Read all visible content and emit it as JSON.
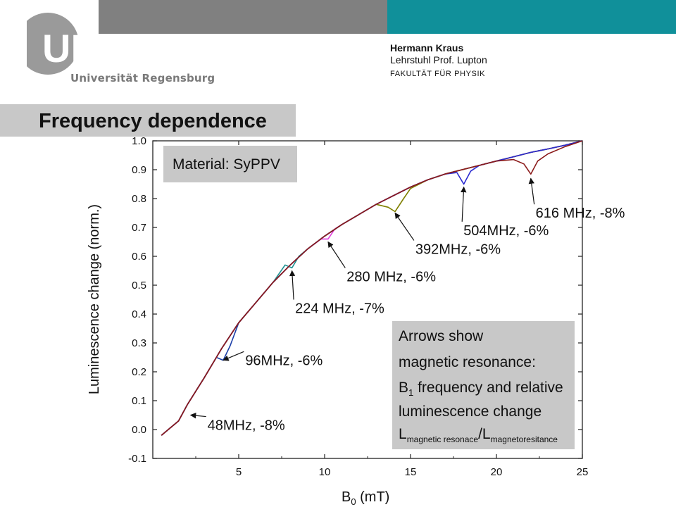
{
  "header": {
    "logo_letters": "UR",
    "university": "Universität Regensburg",
    "author": "Hermann Kraus",
    "chair": "Lehrstuhl Prof. Lupton",
    "faculty": "FAKULTÄT FÜR PHYSIK",
    "colors": {
      "gray_bar": "#808080",
      "teal_bar": "#10909a",
      "logo": "#8a8a8a"
    }
  },
  "slide": {
    "title": "Frequency dependence"
  },
  "chart_data": {
    "type": "line",
    "xlabel_main": "B",
    "xlabel_sub": "0",
    "xlabel_unit": " (mT)",
    "ylabel": "Luminescence change (norm.)",
    "xlim": [
      0,
      25
    ],
    "ylim": [
      -0.1,
      1.0
    ],
    "xticks": [
      "5",
      "10",
      "15",
      "20",
      "25"
    ],
    "yticks": [
      "-0.1",
      "0.0",
      "0.1",
      "0.2",
      "0.3",
      "0.4",
      "0.5",
      "0.6",
      "0.7",
      "0.8",
      "0.9",
      "1.0"
    ],
    "grid": false,
    "series": [
      {
        "color": "#c8102e",
        "x": [
          0.5,
          1.5,
          2,
          3,
          4,
          5,
          6,
          7,
          8,
          9,
          10,
          11,
          12,
          13,
          14,
          15,
          16,
          17,
          18,
          19,
          20,
          21,
          22,
          23,
          24,
          25
        ],
        "y": [
          -0.02,
          0.03,
          0.085,
          0.18,
          0.28,
          0.37,
          0.44,
          0.51,
          0.57,
          0.625,
          0.67,
          0.71,
          0.745,
          0.78,
          0.81,
          0.84,
          0.865,
          0.885,
          0.9,
          0.915,
          0.93,
          0.945,
          0.96,
          0.972,
          0.985,
          1.0
        ]
      },
      {
        "color": "#1c3fa8",
        "x": [
          0.5,
          1.5,
          2,
          3,
          3.7,
          4.1,
          4.5,
          5,
          6,
          7,
          8,
          9,
          10,
          11,
          12,
          13,
          14,
          15,
          16,
          17,
          18,
          19,
          20,
          21,
          22,
          23,
          24,
          25
        ],
        "y": [
          -0.02,
          0.03,
          0.085,
          0.18,
          0.25,
          0.24,
          0.29,
          0.37,
          0.44,
          0.51,
          0.57,
          0.625,
          0.67,
          0.71,
          0.745,
          0.78,
          0.81,
          0.84,
          0.865,
          0.885,
          0.9,
          0.915,
          0.93,
          0.945,
          0.96,
          0.972,
          0.985,
          1.0
        ]
      },
      {
        "color": "#1a9090",
        "x": [
          0.5,
          1.5,
          2,
          3,
          4,
          5,
          6,
          7,
          7.7,
          8.1,
          8.5,
          9,
          10,
          11,
          12,
          13,
          14,
          15,
          16,
          17,
          18,
          19,
          20,
          21,
          22,
          23,
          24,
          25
        ],
        "y": [
          -0.02,
          0.03,
          0.085,
          0.18,
          0.28,
          0.37,
          0.44,
          0.51,
          0.57,
          0.56,
          0.6,
          0.625,
          0.67,
          0.71,
          0.745,
          0.78,
          0.81,
          0.84,
          0.865,
          0.885,
          0.9,
          0.915,
          0.93,
          0.945,
          0.96,
          0.972,
          0.985,
          1.0
        ]
      },
      {
        "color": "#e040e0",
        "x": [
          0.5,
          1.5,
          2,
          3,
          4,
          5,
          6,
          7,
          8,
          9,
          9.8,
          10.2,
          10.6,
          11,
          12,
          13,
          14,
          15,
          16,
          17,
          18,
          19,
          20,
          21,
          22,
          23,
          24,
          25
        ],
        "y": [
          -0.02,
          0.03,
          0.085,
          0.18,
          0.28,
          0.37,
          0.44,
          0.51,
          0.57,
          0.625,
          0.66,
          0.66,
          0.695,
          0.71,
          0.745,
          0.78,
          0.81,
          0.84,
          0.865,
          0.885,
          0.9,
          0.915,
          0.93,
          0.945,
          0.96,
          0.972,
          0.985,
          1.0
        ]
      },
      {
        "color": "#808000",
        "x": [
          0.5,
          1.5,
          2,
          3,
          4,
          5,
          6,
          7,
          8,
          9,
          10,
          11,
          12,
          13,
          13.7,
          14.1,
          14.6,
          15,
          16,
          17,
          18,
          19,
          20,
          21,
          22,
          23,
          24,
          25
        ],
        "y": [
          -0.02,
          0.03,
          0.085,
          0.18,
          0.28,
          0.37,
          0.44,
          0.51,
          0.57,
          0.625,
          0.67,
          0.71,
          0.745,
          0.78,
          0.77,
          0.755,
          0.8,
          0.835,
          0.865,
          0.885,
          0.9,
          0.915,
          0.93,
          0.945,
          0.96,
          0.972,
          0.985,
          1.0
        ]
      },
      {
        "color": "#2a2ad0",
        "x": [
          0.5,
          1.5,
          2,
          3,
          4,
          5,
          6,
          7,
          8,
          9,
          10,
          11,
          12,
          13,
          14,
          15,
          16,
          17,
          17.7,
          18.1,
          18.5,
          19,
          20,
          21,
          22,
          23,
          24,
          25
        ],
        "y": [
          -0.02,
          0.03,
          0.085,
          0.18,
          0.28,
          0.37,
          0.44,
          0.51,
          0.57,
          0.625,
          0.67,
          0.71,
          0.745,
          0.78,
          0.81,
          0.84,
          0.865,
          0.885,
          0.89,
          0.85,
          0.895,
          0.915,
          0.93,
          0.945,
          0.96,
          0.972,
          0.985,
          1.0
        ]
      },
      {
        "color": "#8b1a1a",
        "x": [
          0.5,
          1.5,
          2,
          3,
          4,
          5,
          6,
          7,
          8,
          9,
          10,
          11,
          12,
          13,
          14,
          15,
          16,
          17,
          18,
          19,
          20,
          21,
          21.6,
          22,
          22.4,
          23,
          24,
          25
        ],
        "y": [
          -0.02,
          0.03,
          0.085,
          0.18,
          0.28,
          0.37,
          0.44,
          0.51,
          0.57,
          0.625,
          0.67,
          0.71,
          0.745,
          0.78,
          0.81,
          0.84,
          0.865,
          0.885,
          0.9,
          0.915,
          0.93,
          0.935,
          0.92,
          0.885,
          0.93,
          0.955,
          0.98,
          1.0
        ]
      }
    ],
    "annotations": [
      {
        "text": "48MHz, -8%",
        "point": [
          2.2,
          0.05
        ],
        "anchor": [
          3.1,
          0.045
        ]
      },
      {
        "text": "96MHz, -6%",
        "point": [
          4.1,
          0.24
        ],
        "anchor": [
          5.3,
          0.27
        ]
      },
      {
        "text": "224 MHz, -7%",
        "point": [
          8.1,
          0.55
        ],
        "anchor": [
          8.2,
          0.45
        ]
      },
      {
        "text": "280 MHz, -6%",
        "point": [
          10.2,
          0.65
        ],
        "anchor": [
          11.2,
          0.56
        ]
      },
      {
        "text": "392MHz, -6%",
        "point": [
          14.1,
          0.75
        ],
        "anchor": [
          15.2,
          0.655
        ]
      },
      {
        "text": "504MHz, -6%",
        "point": [
          18.1,
          0.84
        ],
        "anchor": [
          18.0,
          0.72
        ]
      },
      {
        "text": "616 MHz, -8%",
        "point": [
          22.0,
          0.87
        ],
        "anchor": [
          22.2,
          0.78
        ]
      }
    ],
    "material_box": {
      "text": "Material: SyPPV"
    },
    "legend_note": {
      "line1": "Arrows show",
      "line2": "magnetic resonance:",
      "line3_main": "B",
      "line3_sub": "1",
      "line3_rest": " frequency and relative",
      "line4": "luminescence change",
      "line5_L": "L",
      "line5_sub1": "magnetic resonace",
      "line5_slash": "/L",
      "line5_sub2": "magnetoresitance"
    }
  }
}
